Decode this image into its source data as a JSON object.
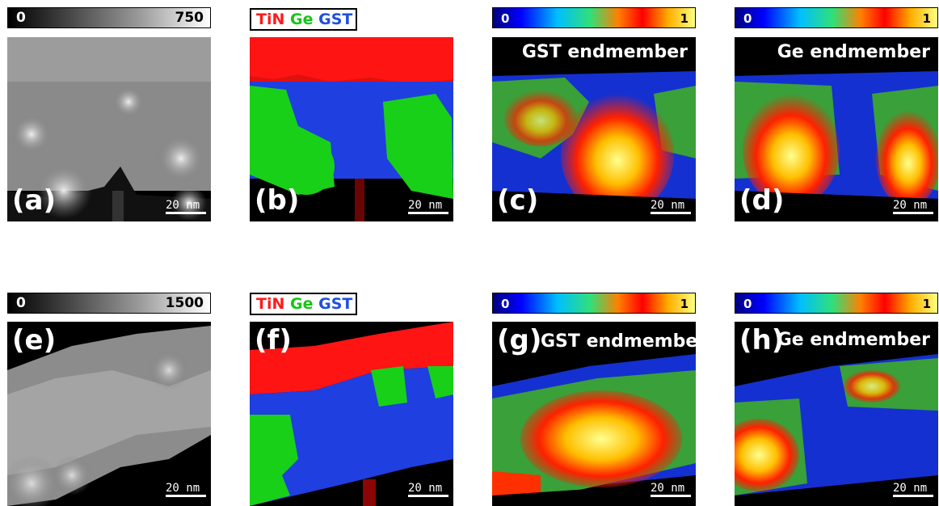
{
  "panels": {
    "a": {
      "label": "(a)",
      "colorbar": {
        "min": "0",
        "max": "750"
      },
      "scale_bar": "20 nm"
    },
    "b": {
      "label": "(b)",
      "legend": [
        "TiN",
        "Ge",
        "GST"
      ],
      "scale_bar": "20 nm"
    },
    "c": {
      "label": "(c)",
      "colorbar": {
        "min": "0",
        "max": "1"
      },
      "title": "GST endmember",
      "scale_bar": "20 nm"
    },
    "d": {
      "label": "(d)",
      "colorbar": {
        "min": "0",
        "max": "1"
      },
      "title": "Ge endmember",
      "scale_bar": "20 nm"
    },
    "e": {
      "label": "(e)",
      "colorbar": {
        "min": "0",
        "max": "1500"
      },
      "scale_bar": "20 nm"
    },
    "f": {
      "label": "(f)",
      "legend": [
        "TiN",
        "Ge",
        "GST"
      ],
      "scale_bar": "20 nm"
    },
    "g": {
      "label": "(g)",
      "colorbar": {
        "min": "0",
        "max": "1"
      },
      "title": "GST endmember",
      "scale_bar": "20 nm"
    },
    "h": {
      "label": "(h)",
      "colorbar": {
        "min": "0",
        "max": "1"
      },
      "title": "Ge endmember",
      "scale_bar": "20 nm"
    }
  },
  "colors": {
    "TiN": "#ff1a1a",
    "Ge": "#16c516",
    "GST": "#1f4fe0",
    "background": "#000000"
  }
}
